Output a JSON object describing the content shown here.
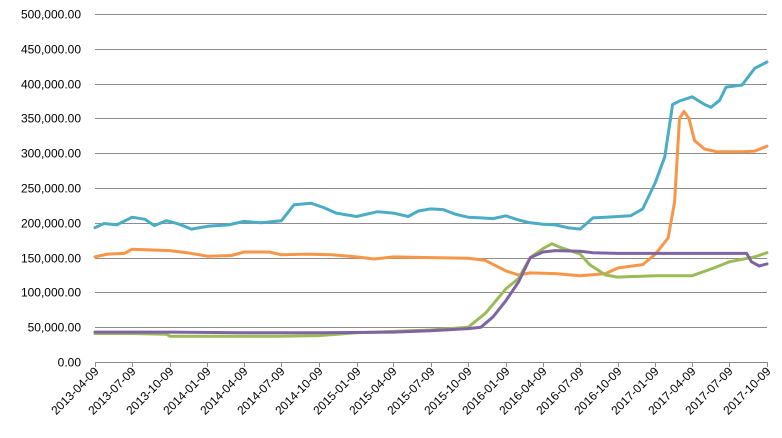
{
  "chart_data": {
    "type": "line",
    "title": "",
    "xlabel": "",
    "ylabel": "",
    "x_ticks": [
      "2013-04-09",
      "2013-07-09",
      "2013-10-09",
      "2014-01-09",
      "2014-04-09",
      "2014-07-09",
      "2014-10-09",
      "2015-01-09",
      "2015-04-09",
      "2015-07-09",
      "2015-10-09",
      "2016-01-09",
      "2016-04-09",
      "2016-07-09",
      "2016-10-09",
      "2017-01-09",
      "2017-04-09",
      "2017-07-09",
      "2017-10-09"
    ],
    "y_ticks": [
      "0.00",
      "50,000.00",
      "100,000.00",
      "150,000.00",
      "200,000.00",
      "250,000.00",
      "300,000.00",
      "350,000.00",
      "400,000.00",
      "450,000.00",
      "500,000.00"
    ],
    "ylim": [
      0,
      500000
    ],
    "xlim": [
      "2013-04-09",
      "2017-10-09"
    ],
    "grid": "horizontal",
    "legend": "none",
    "series": [
      {
        "color": "#4bacc6",
        "points": [
          [
            "2013-04-09",
            193000
          ],
          [
            "2013-05-01",
            199000
          ],
          [
            "2013-06-01",
            197000
          ],
          [
            "2013-07-09",
            208000
          ],
          [
            "2013-08-09",
            205000
          ],
          [
            "2013-09-01",
            196000
          ],
          [
            "2013-10-01",
            203000
          ],
          [
            "2013-11-01",
            198000
          ],
          [
            "2013-12-01",
            191000
          ],
          [
            "2014-01-09",
            195000
          ],
          [
            "2014-03-01",
            197000
          ],
          [
            "2014-04-09",
            202000
          ],
          [
            "2014-05-20",
            200000
          ],
          [
            "2014-07-09",
            203000
          ],
          [
            "2014-08-09",
            226000
          ],
          [
            "2014-09-20",
            228000
          ],
          [
            "2014-10-20",
            222000
          ],
          [
            "2014-11-20",
            214000
          ],
          [
            "2015-01-09",
            209000
          ],
          [
            "2015-03-01",
            216000
          ],
          [
            "2015-04-09",
            214000
          ],
          [
            "2015-05-15",
            209000
          ],
          [
            "2015-06-09",
            217000
          ],
          [
            "2015-07-09",
            220000
          ],
          [
            "2015-08-09",
            219000
          ],
          [
            "2015-09-09",
            212000
          ],
          [
            "2015-10-09",
            208000
          ],
          [
            "2015-11-09",
            207000
          ],
          [
            "2015-12-09",
            206000
          ],
          [
            "2016-01-09",
            210000
          ],
          [
            "2016-02-09",
            204000
          ],
          [
            "2016-03-09",
            200000
          ],
          [
            "2016-04-09",
            198000
          ],
          [
            "2016-05-09",
            197000
          ],
          [
            "2016-06-09",
            193000
          ],
          [
            "2016-07-09",
            191000
          ],
          [
            "2016-08-09",
            207000
          ],
          [
            "2016-09-09",
            208000
          ],
          [
            "2016-10-09",
            209000
          ],
          [
            "2016-11-09",
            210000
          ],
          [
            "2016-12-09",
            220000
          ],
          [
            "2017-01-09",
            258000
          ],
          [
            "2017-02-01",
            295000
          ],
          [
            "2017-02-20",
            370000
          ],
          [
            "2017-03-09",
            375000
          ],
          [
            "2017-04-09",
            381000
          ],
          [
            "2017-05-09",
            370000
          ],
          [
            "2017-05-25",
            366000
          ],
          [
            "2017-06-15",
            376000
          ],
          [
            "2017-07-01",
            395000
          ],
          [
            "2017-08-09",
            398000
          ],
          [
            "2017-09-09",
            422000
          ],
          [
            "2017-10-09",
            431000
          ]
        ]
      },
      {
        "color": "#f79646",
        "points": [
          [
            "2013-04-09",
            151000
          ],
          [
            "2013-05-09",
            155000
          ],
          [
            "2013-06-20",
            156000
          ],
          [
            "2013-07-09",
            162000
          ],
          [
            "2013-08-20",
            161000
          ],
          [
            "2013-10-09",
            160000
          ],
          [
            "2013-11-20",
            157000
          ],
          [
            "2014-01-09",
            152000
          ],
          [
            "2014-03-09",
            153000
          ],
          [
            "2014-04-09",
            158000
          ],
          [
            "2014-06-09",
            158000
          ],
          [
            "2014-07-09",
            154000
          ],
          [
            "2014-09-09",
            155000
          ],
          [
            "2014-11-09",
            154000
          ],
          [
            "2015-01-09",
            151000
          ],
          [
            "2015-02-20",
            148000
          ],
          [
            "2015-04-09",
            151000
          ],
          [
            "2015-07-09",
            150000
          ],
          [
            "2015-10-09",
            149000
          ],
          [
            "2015-11-20",
            146000
          ],
          [
            "2016-01-09",
            131000
          ],
          [
            "2016-02-09",
            125000
          ],
          [
            "2016-03-09",
            128000
          ],
          [
            "2016-05-09",
            127000
          ],
          [
            "2016-07-09",
            124000
          ],
          [
            "2016-09-09",
            127000
          ],
          [
            "2016-10-09",
            135000
          ],
          [
            "2016-12-09",
            140000
          ],
          [
            "2017-01-09",
            155000
          ],
          [
            "2017-02-09",
            178000
          ],
          [
            "2017-02-25",
            230000
          ],
          [
            "2017-03-09",
            350000
          ],
          [
            "2017-03-20",
            360000
          ],
          [
            "2017-04-01",
            350000
          ],
          [
            "2017-04-15",
            318000
          ],
          [
            "2017-05-09",
            306000
          ],
          [
            "2017-06-09",
            302000
          ],
          [
            "2017-08-09",
            302000
          ],
          [
            "2017-09-09",
            303000
          ],
          [
            "2017-10-09",
            310000
          ]
        ]
      },
      {
        "color": "#9bbb59",
        "points": [
          [
            "2013-04-09",
            41000
          ],
          [
            "2013-07-09",
            41000
          ],
          [
            "2013-10-01",
            40000
          ],
          [
            "2013-10-09",
            37000
          ],
          [
            "2014-04-09",
            37000
          ],
          [
            "2014-07-09",
            37000
          ],
          [
            "2014-10-09",
            38000
          ],
          [
            "2015-01-09",
            42000
          ],
          [
            "2015-04-09",
            44000
          ],
          [
            "2015-07-09",
            46000
          ],
          [
            "2015-10-09",
            50000
          ],
          [
            "2015-11-20",
            70000
          ],
          [
            "2016-01-09",
            105000
          ],
          [
            "2016-02-09",
            120000
          ],
          [
            "2016-03-09",
            150000
          ],
          [
            "2016-04-09",
            163000
          ],
          [
            "2016-05-01",
            170000
          ],
          [
            "2016-05-20",
            165000
          ],
          [
            "2016-07-09",
            155000
          ],
          [
            "2016-08-01",
            140000
          ],
          [
            "2016-09-09",
            125000
          ],
          [
            "2016-10-09",
            122000
          ],
          [
            "2017-01-09",
            124000
          ],
          [
            "2017-04-09",
            124000
          ],
          [
            "2017-06-01",
            135000
          ],
          [
            "2017-07-09",
            144000
          ],
          [
            "2017-09-09",
            151000
          ],
          [
            "2017-10-09",
            157000
          ]
        ]
      },
      {
        "color": "#8064a2",
        "points": [
          [
            "2013-04-09",
            43000
          ],
          [
            "2013-10-09",
            43000
          ],
          [
            "2014-04-09",
            42000
          ],
          [
            "2014-10-09",
            42000
          ],
          [
            "2015-04-09",
            43000
          ],
          [
            "2015-07-09",
            45000
          ],
          [
            "2015-10-09",
            48000
          ],
          [
            "2015-11-09",
            50000
          ],
          [
            "2015-12-09",
            65000
          ],
          [
            "2016-01-09",
            88000
          ],
          [
            "2016-02-09",
            115000
          ],
          [
            "2016-03-09",
            150000
          ],
          [
            "2016-04-09",
            158000
          ],
          [
            "2016-05-09",
            160000
          ],
          [
            "2016-07-09",
            159000
          ],
          [
            "2016-08-09",
            157000
          ],
          [
            "2016-10-09",
            156000
          ],
          [
            "2017-01-09",
            156000
          ],
          [
            "2017-04-09",
            156000
          ],
          [
            "2017-07-09",
            156000
          ],
          [
            "2017-08-20",
            156000
          ],
          [
            "2017-09-01",
            144000
          ],
          [
            "2017-09-20",
            138000
          ],
          [
            "2017-10-09",
            141000
          ]
        ]
      }
    ]
  }
}
